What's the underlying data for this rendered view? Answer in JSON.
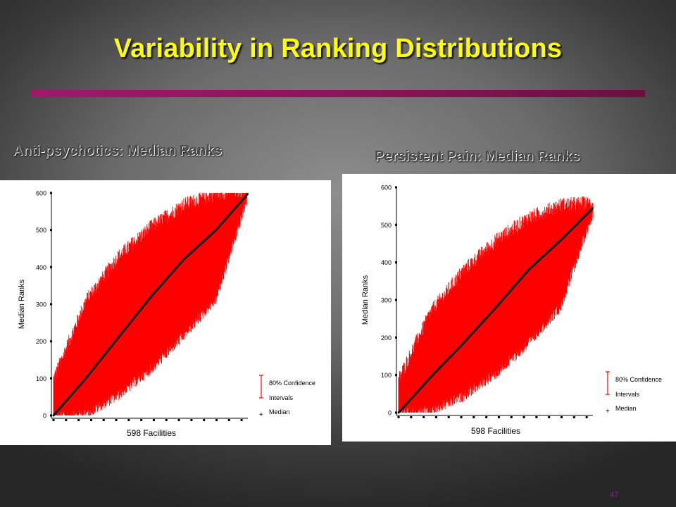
{
  "slide": {
    "title": "Variability in Ranking Distributions",
    "page_number": "47"
  },
  "colors": {
    "title": "#ffff00",
    "accent_rule": "#8a1458",
    "interval": "#ff0000",
    "median": "#000000"
  },
  "chart_data": [
    {
      "type": "scatter",
      "title": "Anti-psychotics: Median Ranks",
      "xlabel": "598 Facilities",
      "ylabel": "Median Ranks",
      "xlim": [
        1,
        598
      ],
      "ylim": [
        0,
        600
      ],
      "y_ticks": [
        "0",
        "100",
        "200",
        "300",
        "400",
        "500",
        "600"
      ],
      "legend": {
        "placement": "bottom-right",
        "interval_label_line1": "80% Confidence",
        "interval_label_line2": "Intervals",
        "median_label": "Median"
      },
      "series": [
        {
          "name": "Median",
          "x": [
            1,
            100,
            200,
            300,
            400,
            500,
            598
          ],
          "values": [
            0,
            100,
            210,
            320,
            420,
            500,
            598
          ]
        },
        {
          "name": "80% Confidence Intervals",
          "x": [
            1,
            100,
            200,
            300,
            400,
            500,
            598
          ],
          "lower": [
            0,
            10,
            60,
            130,
            220,
            320,
            595
          ],
          "upper": [
            90,
            300,
            420,
            500,
            560,
            590,
            600
          ]
        }
      ]
    },
    {
      "type": "scatter",
      "title": "Persistent Pain: Median Ranks",
      "xlabel": "598 Facilities",
      "ylabel": "Median Ranks",
      "xlim": [
        1,
        598
      ],
      "ylim": [
        0,
        600
      ],
      "y_ticks": [
        "0",
        "100",
        "200",
        "300",
        "400",
        "500",
        "600"
      ],
      "legend": {
        "placement": "bottom-right",
        "interval_label_line1": "80% Confidence",
        "interval_label_line2": "Intervals",
        "median_label": "Median"
      },
      "series": [
        {
          "name": "Median",
          "x": [
            1,
            100,
            200,
            300,
            400,
            500,
            598
          ],
          "values": [
            0,
            95,
            185,
            280,
            380,
            460,
            545
          ]
        },
        {
          "name": "80% Confidence Intervals",
          "x": [
            1,
            100,
            200,
            300,
            400,
            500,
            598
          ],
          "lower": [
            0,
            10,
            50,
            110,
            190,
            290,
            540
          ],
          "upper": [
            80,
            260,
            370,
            450,
            510,
            545,
            550
          ]
        }
      ]
    }
  ]
}
